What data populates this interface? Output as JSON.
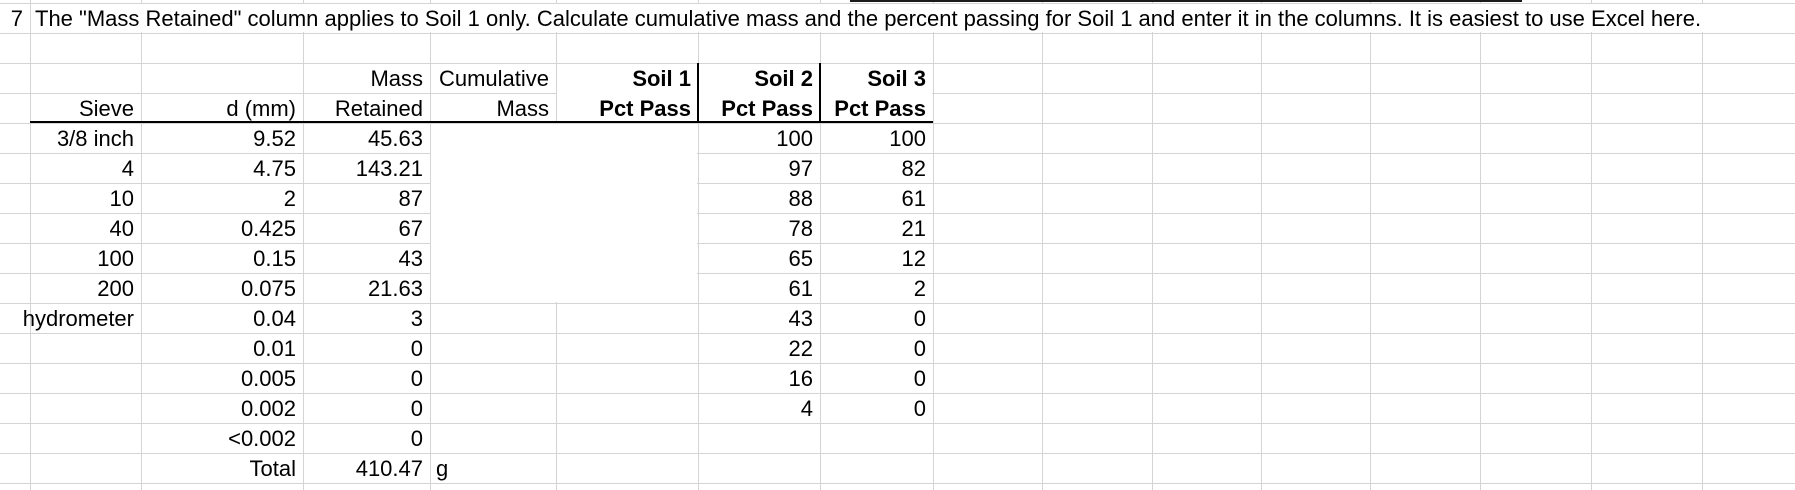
{
  "colors": {
    "background": "#ffffff",
    "gridline": "#d4d4d4",
    "border": "#000000",
    "text": "#000000"
  },
  "row_marker": "7",
  "instruction": "The \"Mass Retained\" column applies to Soil 1 only. Calculate cumulative mass and the percent passing for Soil 1 and enter it in the columns. It is easiest to use Excel here.",
  "table": {
    "header_top": {
      "mass": "Mass",
      "cumulative": "Cumulative",
      "soil1": "Soil 1",
      "soil2": "Soil 2",
      "soil3": "Soil 3"
    },
    "header_bottom": {
      "sieve": "Sieve",
      "d": "d (mm)",
      "retained": "Retained",
      "mass": "Mass",
      "soil1": "Pct Pass",
      "soil2": "Pct Pass",
      "soil3": "Pct Pass"
    },
    "rows": [
      {
        "sieve": "3/8 inch",
        "d": "9.52",
        "mass_retained": "45.63",
        "cumulative_mass": "",
        "soil1_pct": "",
        "soil2_pct": "100",
        "soil3_pct": "100"
      },
      {
        "sieve": "4",
        "d": "4.75",
        "mass_retained": "143.21",
        "cumulative_mass": "",
        "soil1_pct": "",
        "soil2_pct": "97",
        "soil3_pct": "82"
      },
      {
        "sieve": "10",
        "d": "2",
        "mass_retained": "87",
        "cumulative_mass": "",
        "soil1_pct": "",
        "soil2_pct": "88",
        "soil3_pct": "61"
      },
      {
        "sieve": "40",
        "d": "0.425",
        "mass_retained": "67",
        "cumulative_mass": "",
        "soil1_pct": "",
        "soil2_pct": "78",
        "soil3_pct": "21"
      },
      {
        "sieve": "100",
        "d": "0.15",
        "mass_retained": "43",
        "cumulative_mass": "",
        "soil1_pct": "",
        "soil2_pct": "65",
        "soil3_pct": "12"
      },
      {
        "sieve": "200",
        "d": "0.075",
        "mass_retained": "21.63",
        "cumulative_mass": "",
        "soil1_pct": "",
        "soil2_pct": "61",
        "soil3_pct": "2"
      },
      {
        "sieve": "hydrometer",
        "d": "0.04",
        "mass_retained": "3",
        "cumulative_mass": "",
        "soil1_pct": "",
        "soil2_pct": "43",
        "soil3_pct": "0"
      },
      {
        "sieve": "",
        "d": "0.01",
        "mass_retained": "0",
        "cumulative_mass": "",
        "soil1_pct": "",
        "soil2_pct": "22",
        "soil3_pct": "0"
      },
      {
        "sieve": "",
        "d": "0.005",
        "mass_retained": "0",
        "cumulative_mass": "",
        "soil1_pct": "",
        "soil2_pct": "16",
        "soil3_pct": "0"
      },
      {
        "sieve": "",
        "d": "0.002",
        "mass_retained": "0",
        "cumulative_mass": "",
        "soil1_pct": "",
        "soil2_pct": "4",
        "soil3_pct": "0"
      },
      {
        "sieve": "",
        "d": "<0.002",
        "mass_retained": "0",
        "cumulative_mass": "",
        "soil1_pct": "",
        "soil2_pct": "",
        "soil3_pct": ""
      }
    ],
    "total": {
      "label": "Total",
      "value": "410.47",
      "unit": "g"
    }
  }
}
